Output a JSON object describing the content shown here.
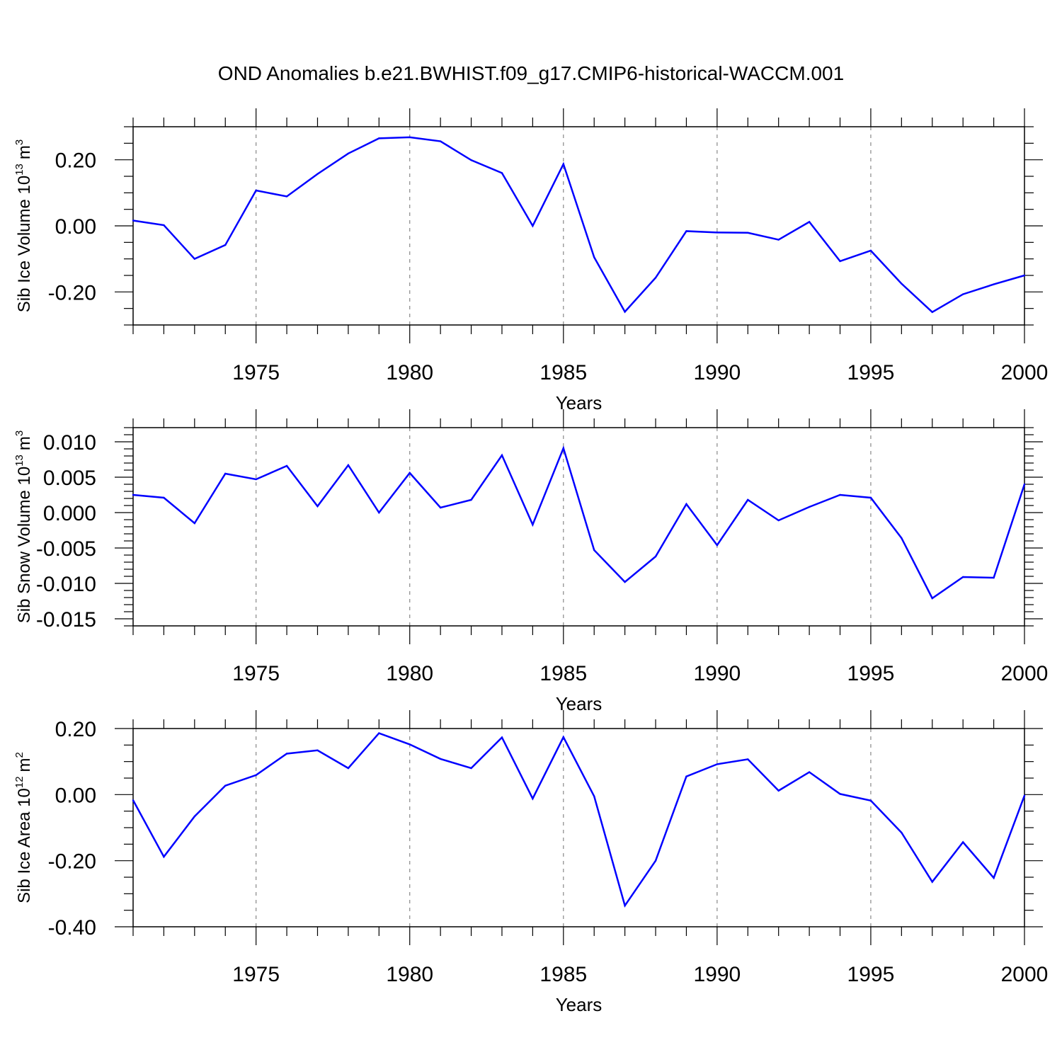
{
  "title": "OND Anomalies b.e21.BWHIST.f09_g17.CMIP6-historical-WACCM.001",
  "colors": {
    "line": "#0000ff",
    "grid": "#888888",
    "axis": "#000000"
  },
  "chart_data": [
    {
      "type": "line",
      "ylabel_main": "Sib Ice Volume 10",
      "ylabel_exp": "13",
      "ylabel_unit": "m",
      "ylabel_unit_exp": "3",
      "xlabel": "Years",
      "xlim": [
        1971,
        2000
      ],
      "ylim": [
        -0.3,
        0.3
      ],
      "yticks": [
        -0.2,
        0.0,
        0.2
      ],
      "ytick_labels": [
        "-0.20",
        "0.00",
        "0.20"
      ],
      "yminor_step": 0.05,
      "xticks": [
        1975,
        1980,
        1985,
        1990,
        1995,
        2000
      ],
      "xtick_labels": [
        "1975",
        "1980",
        "1985",
        "1990",
        "1995",
        "2000"
      ],
      "x": [
        1971,
        1972,
        1973,
        1974,
        1975,
        1976,
        1977,
        1978,
        1979,
        1980,
        1981,
        1982,
        1983,
        1984,
        1985,
        1986,
        1987,
        1988,
        1989,
        1990,
        1991,
        1992,
        1993,
        1994,
        1995,
        1996,
        1997,
        1998,
        1999,
        2000
      ],
      "series": [
        {
          "name": "Sib Ice Volume",
          "values": [
            0.016,
            0.002,
            -0.1,
            -0.058,
            0.107,
            0.089,
            0.157,
            0.219,
            0.265,
            0.268,
            0.256,
            0.199,
            0.16,
            0.0,
            0.187,
            -0.095,
            -0.26,
            -0.157,
            -0.016,
            -0.02,
            -0.021,
            -0.042,
            0.012,
            -0.107,
            -0.075,
            -0.175,
            -0.261,
            -0.207,
            -0.177,
            -0.15
          ]
        }
      ]
    },
    {
      "type": "line",
      "ylabel_main": "Sib Snow Volume 10",
      "ylabel_exp": "13",
      "ylabel_unit": "m",
      "ylabel_unit_exp": "3",
      "xlabel": "Years",
      "xlim": [
        1971,
        2000
      ],
      "ylim": [
        -0.016,
        0.012
      ],
      "yticks": [
        -0.015,
        -0.01,
        -0.005,
        0.0,
        0.005,
        0.01
      ],
      "ytick_labels": [
        "-0.015",
        "-0.010",
        "-0.005",
        "0.000",
        "0.005",
        "0.010"
      ],
      "yminor_step": 0.001,
      "xticks": [
        1975,
        1980,
        1985,
        1990,
        1995,
        2000
      ],
      "xtick_labels": [
        "1975",
        "1980",
        "1985",
        "1990",
        "1995",
        "2000"
      ],
      "x": [
        1971,
        1972,
        1973,
        1974,
        1975,
        1976,
        1977,
        1978,
        1979,
        1980,
        1981,
        1982,
        1983,
        1984,
        1985,
        1986,
        1987,
        1988,
        1989,
        1990,
        1991,
        1992,
        1993,
        1994,
        1995,
        1996,
        1997,
        1998,
        1999,
        2000
      ],
      "series": [
        {
          "name": "Sib Snow Volume",
          "values": [
            0.0025,
            0.0021,
            -0.0015,
            0.0055,
            0.0047,
            0.0066,
            0.0009,
            0.0067,
            0.0,
            0.0056,
            0.0007,
            0.0018,
            0.0081,
            -0.0017,
            0.0091,
            -0.0053,
            -0.0098,
            -0.0062,
            0.0012,
            -0.0046,
            0.0018,
            -0.0011,
            0.0008,
            0.0025,
            0.0021,
            -0.0036,
            -0.0121,
            -0.0091,
            -0.0092,
            0.004
          ]
        }
      ]
    },
    {
      "type": "line",
      "ylabel_main": "Sib Ice Area 10",
      "ylabel_exp": "12",
      "ylabel_unit": "m",
      "ylabel_unit_exp": "2",
      "xlabel": "Years",
      "xlim": [
        1971,
        2000
      ],
      "ylim": [
        -0.4,
        0.2
      ],
      "yticks": [
        -0.4,
        -0.2,
        0.0,
        0.2
      ],
      "ytick_labels": [
        "-0.40",
        "-0.20",
        "0.00",
        "0.20"
      ],
      "yminor_step": 0.05,
      "xticks": [
        1975,
        1980,
        1985,
        1990,
        1995,
        2000
      ],
      "xtick_labels": [
        "1975",
        "1980",
        "1985",
        "1990",
        "1995",
        "2000"
      ],
      "x": [
        1971,
        1972,
        1973,
        1974,
        1975,
        1976,
        1977,
        1978,
        1979,
        1980,
        1981,
        1982,
        1983,
        1984,
        1985,
        1986,
        1987,
        1988,
        1989,
        1990,
        1991,
        1992,
        1993,
        1994,
        1995,
        1996,
        1997,
        1998,
        1999,
        2000
      ],
      "series": [
        {
          "name": "Sib Ice Area",
          "values": [
            -0.017,
            -0.188,
            -0.066,
            0.027,
            0.059,
            0.124,
            0.134,
            0.08,
            0.186,
            0.152,
            0.108,
            0.08,
            0.173,
            -0.012,
            0.174,
            -0.005,
            -0.336,
            -0.2,
            0.055,
            0.092,
            0.107,
            0.012,
            0.068,
            0.002,
            -0.018,
            -0.115,
            -0.264,
            -0.144,
            -0.252,
            -0.003
          ]
        }
      ]
    }
  ]
}
